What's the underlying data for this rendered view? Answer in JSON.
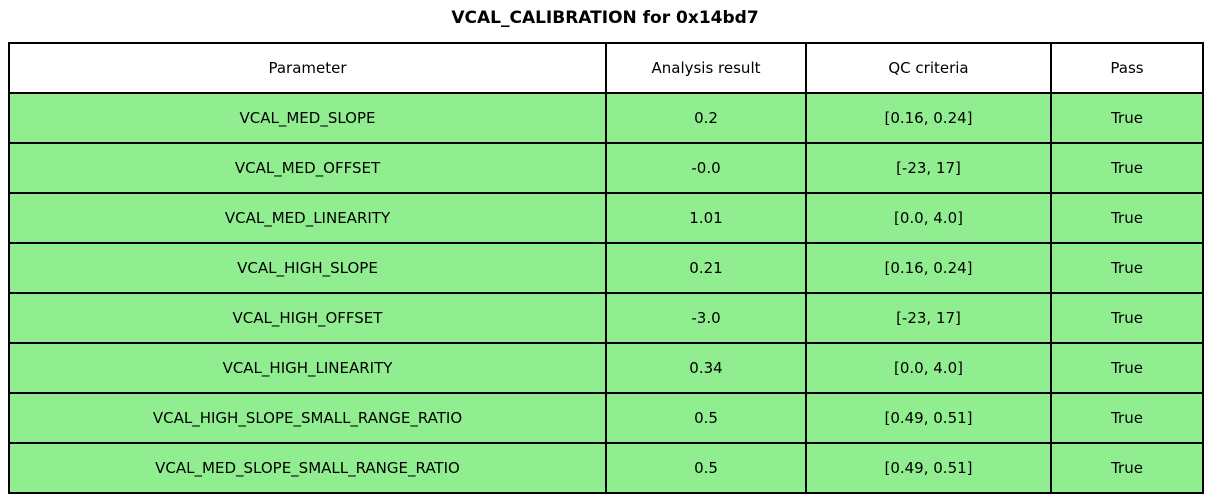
{
  "title": "VCAL_CALIBRATION for 0x14bd7",
  "colors": {
    "row_green": "#90ee90",
    "header_bg": "#ffffff",
    "border": "#000000",
    "text": "#000000"
  },
  "table": {
    "columns": [
      "Parameter",
      "Analysis result",
      "QC criteria",
      "Pass"
    ],
    "rows": [
      [
        "VCAL_MED_SLOPE",
        "0.2",
        "[0.16, 0.24]",
        "True"
      ],
      [
        "VCAL_MED_OFFSET",
        "-0.0",
        "[-23, 17]",
        "True"
      ],
      [
        "VCAL_MED_LINEARITY",
        "1.01",
        "[0.0, 4.0]",
        "True"
      ],
      [
        "VCAL_HIGH_SLOPE",
        "0.21",
        "[0.16, 0.24]",
        "True"
      ],
      [
        "VCAL_HIGH_OFFSET",
        "-3.0",
        "[-23, 17]",
        "True"
      ],
      [
        "VCAL_HIGH_LINEARITY",
        "0.34",
        "[0.0, 4.0]",
        "True"
      ],
      [
        "VCAL_HIGH_SLOPE_SMALL_RANGE_RATIO",
        "0.5",
        "[0.49, 0.51]",
        "True"
      ],
      [
        "VCAL_MED_SLOPE_SMALL_RANGE_RATIO",
        "0.5",
        "[0.49, 0.51]",
        "True"
      ]
    ]
  }
}
